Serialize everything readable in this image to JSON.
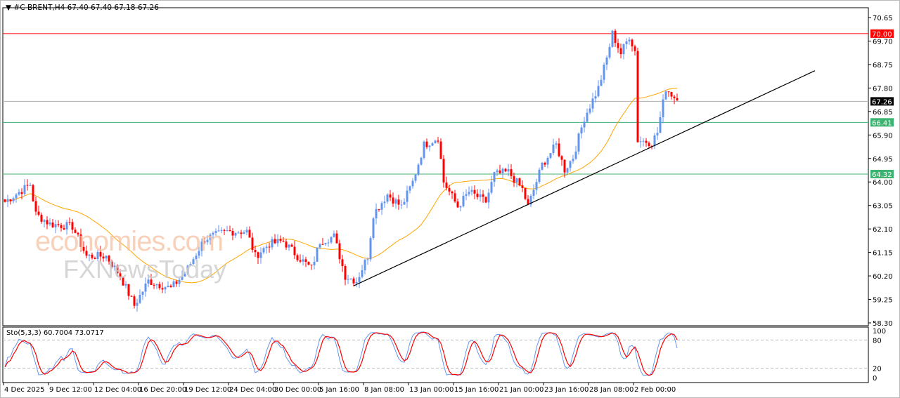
{
  "header": {
    "symbol": "#C-BRENT,H4",
    "ohlc": "67.40 67.40 67.18 67.26"
  },
  "stochastic": {
    "label": "Sto(5,3,3) 60.7004 73.0717",
    "levels": [
      "100",
      "80",
      "20",
      "0"
    ]
  },
  "watermark": {
    "line1": "economies.com",
    "line2": "FXNewsToday"
  },
  "colors": {
    "bull": "#6495ed",
    "bear": "#ff0000",
    "ma": "#ffa500",
    "resistance": "#ff0000",
    "support": "#3cb371",
    "price": "#000000"
  },
  "chart_data": {
    "type": "candlestick",
    "title": "#C-BRENT,H4",
    "ylim": [
      58.3,
      70.65
    ],
    "y_ticks": [
      "70.65",
      "69.70",
      "68.75",
      "67.80",
      "66.85",
      "65.90",
      "64.95",
      "64.00",
      "63.05",
      "62.10",
      "61.15",
      "60.20",
      "59.25",
      "58.30"
    ],
    "x_ticks": [
      "4 Dec 2025",
      "9 Dec 12:00",
      "12 Dec 04:00",
      "16 Dec 20:00",
      "19 Dec 12:00",
      "24 Dec 04:00",
      "30 Dec 00:00",
      "5 Jan 16:00",
      "8 Jan 08:00",
      "13 Jan 00:00",
      "15 Jan 16:00",
      "21 Jan 00:00",
      "23 Jan 16:00",
      "28 Jan 08:00",
      "2 Feb 00:00"
    ],
    "bars_per_xtick": 16,
    "close_keypoints": [
      [
        0,
        63.2
      ],
      [
        9,
        63.9
      ],
      [
        11,
        62.7
      ],
      [
        16,
        62.3
      ],
      [
        24,
        62.2
      ],
      [
        29,
        61.0
      ],
      [
        36,
        61.0
      ],
      [
        41,
        60.2
      ],
      [
        46,
        59.0
      ],
      [
        51,
        60.0
      ],
      [
        59,
        59.7
      ],
      [
        64,
        60.3
      ],
      [
        71,
        61.7
      ],
      [
        79,
        62.0
      ],
      [
        86,
        62.0
      ],
      [
        89,
        61.0
      ],
      [
        94,
        61.5
      ],
      [
        99,
        61.6
      ],
      [
        104,
        61.0
      ],
      [
        109,
        60.5
      ],
      [
        112,
        61.6
      ],
      [
        117,
        61.8
      ],
      [
        121,
        60.2
      ],
      [
        125,
        60.0
      ],
      [
        129,
        61.0
      ],
      [
        131,
        62.7
      ],
      [
        136,
        63.5
      ],
      [
        141,
        63.0
      ],
      [
        145,
        64.0
      ],
      [
        149,
        65.5
      ],
      [
        154,
        65.8
      ],
      [
        156,
        64.0
      ],
      [
        161,
        63.0
      ],
      [
        165,
        63.6
      ],
      [
        171,
        63.2
      ],
      [
        174,
        64.3
      ],
      [
        179,
        64.4
      ],
      [
        184,
        63.7
      ],
      [
        186,
        63.0
      ],
      [
        191,
        64.7
      ],
      [
        196,
        65.5
      ],
      [
        199,
        64.5
      ],
      [
        202,
        65.0
      ],
      [
        206,
        66.6
      ],
      [
        211,
        67.8
      ],
      [
        214,
        69.0
      ],
      [
        216,
        70.0
      ],
      [
        219,
        69.2
      ],
      [
        222,
        69.9
      ],
      [
        224,
        69.3
      ],
      [
        225,
        65.7
      ],
      [
        230,
        65.6
      ],
      [
        232,
        66.0
      ],
      [
        235,
        67.8
      ],
      [
        239,
        67.3
      ]
    ],
    "horizontal_levels": [
      {
        "label": "70.00",
        "value": 70.0,
        "color": "#ff0000"
      },
      {
        "label": "67.26",
        "value": 67.26,
        "color": "#000000"
      },
      {
        "label": "66.41",
        "value": 66.41,
        "color": "#3cb371"
      },
      {
        "label": "64.32",
        "value": 64.32,
        "color": "#3cb371"
      }
    ],
    "trendline": {
      "from": [
        124,
        59.8
      ],
      "to": [
        288,
        68.5
      ]
    },
    "indicator": {
      "name": "Sto(5,3,3)",
      "main": 60.7004,
      "signal": 73.0717,
      "ylim": [
        0,
        100
      ],
      "levels": [
        20,
        80
      ]
    }
  }
}
